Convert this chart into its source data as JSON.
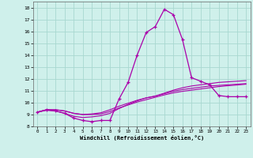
{
  "xlabel": "Windchill (Refroidissement éolien,°C)",
  "background_color": "#cff0eb",
  "grid_color": "#a8d8d0",
  "line_color": "#aa00aa",
  "x_ticks": [
    0,
    1,
    2,
    3,
    4,
    5,
    6,
    7,
    8,
    9,
    10,
    11,
    12,
    13,
    14,
    15,
    16,
    17,
    18,
    19,
    20,
    21,
    22,
    23
  ],
  "y_ticks": [
    8,
    9,
    10,
    11,
    12,
    13,
    14,
    15,
    16,
    17,
    18
  ],
  "ylim": [
    8,
    18.5
  ],
  "xlim": [
    -0.5,
    23.5
  ],
  "curve1_x": [
    0,
    1,
    2,
    3,
    4,
    5,
    6,
    7,
    8,
    9,
    10,
    11,
    12,
    13,
    14,
    15,
    16,
    17,
    18,
    19,
    20,
    21,
    22,
    23
  ],
  "curve1_y": [
    9.2,
    9.4,
    9.3,
    9.1,
    8.7,
    8.5,
    8.4,
    8.5,
    8.5,
    10.3,
    11.7,
    14.0,
    15.9,
    16.4,
    17.85,
    17.4,
    15.3,
    12.1,
    11.8,
    11.5,
    10.6,
    10.5,
    10.5,
    10.5
  ],
  "curve2_x": [
    0,
    1,
    2,
    3,
    4,
    5,
    6,
    7,
    8,
    9,
    10,
    11,
    12,
    13,
    14,
    15,
    16,
    17,
    18,
    19,
    20,
    21,
    22,
    23
  ],
  "curve2_y": [
    9.2,
    9.35,
    9.3,
    9.1,
    8.85,
    8.75,
    8.8,
    8.9,
    9.1,
    9.5,
    9.85,
    10.15,
    10.4,
    10.55,
    10.8,
    11.05,
    11.25,
    11.4,
    11.5,
    11.6,
    11.7,
    11.75,
    11.8,
    11.85
  ],
  "curve3_x": [
    0,
    1,
    2,
    3,
    4,
    5,
    6,
    7,
    8,
    9,
    10,
    11,
    12,
    13,
    14,
    15,
    16,
    17,
    18,
    19,
    20,
    21,
    22,
    23
  ],
  "curve3_y": [
    9.2,
    9.4,
    9.4,
    9.3,
    9.1,
    9.0,
    9.05,
    9.15,
    9.4,
    9.7,
    9.95,
    10.2,
    10.4,
    10.55,
    10.75,
    10.95,
    11.1,
    11.2,
    11.3,
    11.4,
    11.45,
    11.5,
    11.55,
    11.6
  ],
  "curve4_x": [
    0,
    1,
    2,
    3,
    4,
    5,
    6,
    7,
    8,
    9,
    10,
    11,
    12,
    13,
    14,
    15,
    16,
    17,
    18,
    19,
    20,
    21,
    22,
    23
  ],
  "curve4_y": [
    9.2,
    9.4,
    9.4,
    9.3,
    9.1,
    9.0,
    9.0,
    9.05,
    9.25,
    9.55,
    9.8,
    10.05,
    10.25,
    10.45,
    10.65,
    10.82,
    10.95,
    11.05,
    11.15,
    11.25,
    11.35,
    11.42,
    11.48,
    11.55
  ]
}
